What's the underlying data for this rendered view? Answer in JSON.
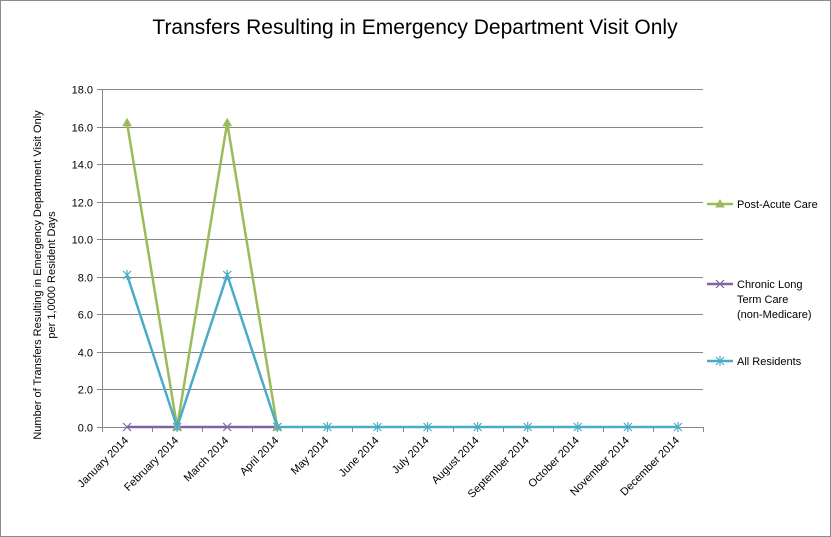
{
  "chart_data": {
    "type": "line",
    "title": "Transfers Resulting in Emergency Department Visit Only",
    "ylabel_line1": "Number  of Transfers Resulting in Emergency Department  Visit Only",
    "ylabel_line2": "per 1,0000 Resident Days",
    "xlabel": "",
    "ylim": [
      0,
      18
    ],
    "y_ticks": [
      "0.0",
      "2.0",
      "4.0",
      "6.0",
      "8.0",
      "10.0",
      "12.0",
      "14.0",
      "16.0",
      "18.0"
    ],
    "grid": true,
    "legend_position": "right",
    "categories": [
      "January 2014",
      "February 2014",
      "March 2014",
      "April 2014",
      "May 2014",
      "June 2014",
      "July 2014",
      "August 2014",
      "September 2014",
      "October 2014",
      "November 2014",
      "December 2014"
    ],
    "series": [
      {
        "name": "Post-Acute Care",
        "color": "#9bbb59",
        "marker": "triangle",
        "values": [
          16.2,
          0.0,
          16.2,
          0.0,
          null,
          null,
          null,
          null,
          null,
          null,
          null,
          null
        ]
      },
      {
        "name": "Chronic Long Term Care (non-Medicare)",
        "legend_lines": [
          "Chronic Long",
          "Term Care",
          "(non-Medicare)"
        ],
        "color": "#8064a2",
        "marker": "x",
        "values": [
          0.0,
          0.0,
          0.0,
          0.0,
          null,
          null,
          null,
          null,
          null,
          null,
          null,
          null
        ]
      },
      {
        "name": "All Residents",
        "color": "#4bacc6",
        "marker": "star",
        "values": [
          8.1,
          0.0,
          8.1,
          0.0,
          0.0,
          0.0,
          0.0,
          0.0,
          0.0,
          0.0,
          0.0,
          0.0
        ]
      }
    ]
  }
}
